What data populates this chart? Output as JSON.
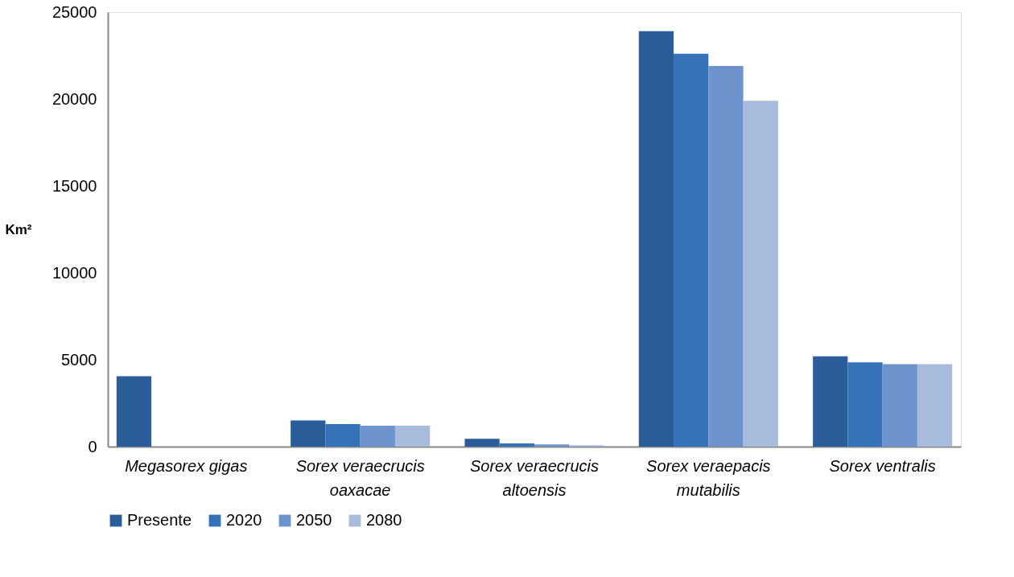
{
  "chart_data": {
    "type": "bar",
    "ylabel": "Km²",
    "categories": [
      "Megasorex gigas",
      "Sorex veraecrucis oaxacae",
      "Sorex veraecrucis altoensis",
      "Sorex veraepacis mutabilis",
      "Sorex ventralis"
    ],
    "series": [
      {
        "name": "Presente",
        "color": "#2a5d9a",
        "values": [
          4050,
          1500,
          450,
          23900,
          5200
        ]
      },
      {
        "name": "2020",
        "color": "#3572b8",
        "values": [
          0,
          1300,
          180,
          22600,
          4850
        ]
      },
      {
        "name": "2050",
        "color": "#6d93cc",
        "values": [
          0,
          1200,
          130,
          21900,
          4750
        ]
      },
      {
        "name": "2080",
        "color": "#a9bbdc",
        "values": [
          0,
          1200,
          80,
          19900,
          4750
        ]
      }
    ],
    "ylim": [
      0,
      25000
    ],
    "yticks": [
      0,
      5000,
      10000,
      15000,
      20000,
      25000
    ],
    "grid": false,
    "legend": "bottom"
  }
}
